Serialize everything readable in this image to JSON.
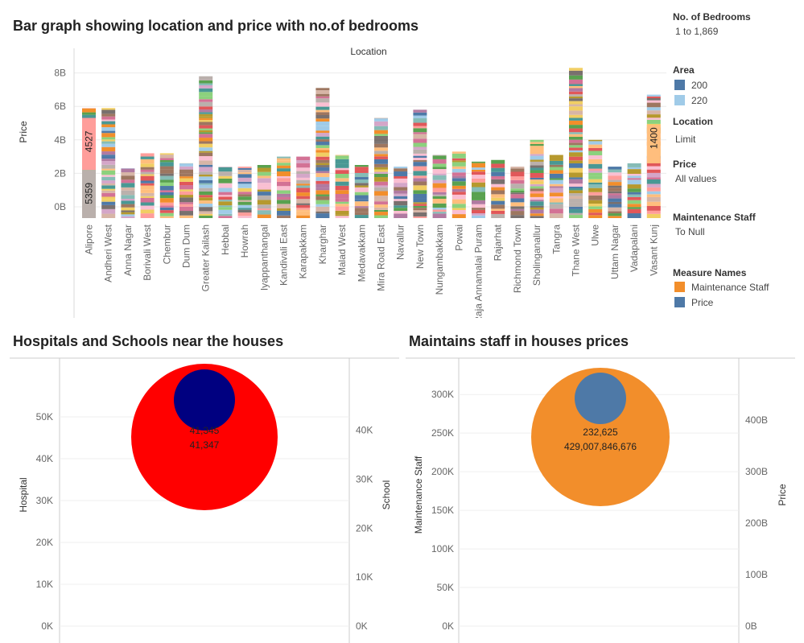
{
  "titles": {
    "main": "Bar graph showing location and price with no.of bedrooms",
    "hospitals": "Hospitals and Schools near the houses",
    "staff": "Maintains staff in houses prices"
  },
  "legend": {
    "bedrooms_head": "No. of Bedrooms",
    "bedrooms_val": "1 to 1,869",
    "area_head": "Area",
    "area_items": [
      {
        "label": "200",
        "color": "#4e79a7"
      },
      {
        "label": "220",
        "color": "#a0cbe8"
      }
    ],
    "location_head": "Location",
    "location_val": "Limit",
    "price_head": "Price",
    "price_val": "All values",
    "maint_head": "Maintenance Staff",
    "maint_val": "To Null",
    "measure_head": "Measure Names",
    "measure_items": [
      {
        "label": "Maintenance Staff",
        "color": "#f28e2b"
      },
      {
        "label": "Price",
        "color": "#4e79a7"
      }
    ]
  },
  "chart_data": [
    {
      "type": "bar",
      "stacked": true,
      "title": "Bar graph showing location and price with no.of bedrooms",
      "xlabel": "Location",
      "ylabel": "Price",
      "yticks": [
        "0B",
        "2B",
        "4B",
        "6B",
        "8B"
      ],
      "ylim": [
        -0.7,
        8.3
      ],
      "unit": "billions",
      "categories": [
        "Alipore",
        "Andheri West",
        "Anna Nagar",
        "Borivali West",
        "Chembur",
        "Dum Dum",
        "Greater Kailash",
        "Hebbal",
        "Howrah",
        "Iyappanthangal",
        "Kandivali East",
        "Karapakkam",
        "Kharghar",
        "Malad West",
        "Medavakkam",
        "Mira Road East",
        "Navallur",
        "New Town",
        "Nungambakkam",
        "Powai",
        "Raja Annamalai Puram",
        "Rajarhat",
        "Richmond Town",
        "Sholinganallur",
        "Tangra",
        "Thane West",
        "Ulwe",
        "Uttam Nagar",
        "Vadapalani",
        "Vasant Kunj"
      ],
      "totals": [
        5.9,
        5.9,
        2.3,
        3.2,
        3.2,
        2.6,
        7.8,
        2.4,
        2.4,
        2.5,
        3.0,
        3.0,
        7.1,
        3.1,
        2.5,
        5.3,
        2.4,
        5.8,
        3.1,
        3.3,
        2.7,
        2.8,
        2.4,
        4.0,
        3.1,
        8.3,
        4.0,
        2.4,
        2.6,
        6.7
      ],
      "annotations": [
        {
          "category": "Alipore",
          "label": "4527"
        },
        {
          "category": "Alipore",
          "label": "5359"
        },
        {
          "category": "Vasant Kunj",
          "label": "1400"
        }
      ]
    },
    {
      "type": "scatter",
      "title": "Hospitals and Schools near the houses",
      "series": [
        {
          "name": "Hospital",
          "value": 41347,
          "color": "#ff0000"
        },
        {
          "name": "School",
          "value": 41345,
          "color": "#000080"
        }
      ],
      "labels": [
        "41,345",
        "41,347"
      ],
      "yleft": {
        "label": "Hospital",
        "ticks": [
          "0K",
          "10K",
          "20K",
          "30K",
          "40K",
          "50K"
        ],
        "ylim": [
          0,
          55000
        ]
      },
      "yright": {
        "label": "School",
        "ticks": [
          "0K",
          "10K",
          "20K",
          "30K",
          "40K"
        ],
        "ylim": [
          0,
          47000
        ]
      }
    },
    {
      "type": "scatter",
      "title": "Maintains staff in houses prices",
      "series": [
        {
          "name": "Maintenance Staff",
          "value": 232625,
          "color": "#f28e2b"
        },
        {
          "name": "Price",
          "value": 429007846676,
          "color": "#4e79a7"
        }
      ],
      "labels": [
        "232,625",
        "429,007,846,676"
      ],
      "yleft": {
        "label": "Maintenance Staff",
        "ticks": [
          "0K",
          "50K",
          "100K",
          "150K",
          "200K",
          "250K",
          "300K"
        ],
        "ylim": [
          0,
          320000
        ]
      },
      "yright": {
        "label": "Price",
        "ticks": [
          "0B",
          "100B",
          "200B",
          "300B",
          "400B"
        ],
        "ylim": [
          0,
          480000000000
        ]
      }
    }
  ]
}
